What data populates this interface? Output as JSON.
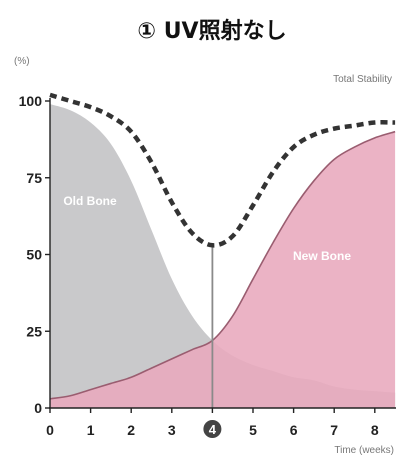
{
  "title": "① UV照射なし",
  "chart_data": {
    "type": "area",
    "unit_label": "(%)",
    "xlabel": "Time (weeks)",
    "x_ticks": [
      0,
      1,
      2,
      3,
      4,
      5,
      6,
      7,
      8
    ],
    "y_ticks": [
      0,
      25,
      50,
      75,
      100
    ],
    "xlim": [
      0,
      8.5
    ],
    "ylim": [
      0,
      100
    ],
    "highlight_x": 4,
    "series": [
      {
        "name": "Old Bone",
        "color": "#c9c9cb",
        "x": [
          0,
          0.5,
          1,
          1.5,
          2,
          2.5,
          3,
          3.5,
          4,
          4.5,
          5,
          5.5,
          6,
          6.5,
          7,
          7.5,
          8,
          8.5
        ],
        "y": [
          99,
          97,
          93,
          86,
          74,
          58,
          42,
          30,
          22,
          17,
          14,
          12,
          10,
          9,
          7,
          6,
          5.5,
          5
        ]
      },
      {
        "name": "New Bone",
        "color": "#e8a9bd",
        "x": [
          0,
          0.5,
          1,
          1.5,
          2,
          2.5,
          3,
          3.5,
          4,
          4.5,
          5,
          5.5,
          6,
          6.5,
          7,
          7.5,
          8,
          8.5
        ],
        "y": [
          3,
          4,
          6,
          8,
          10,
          13,
          16,
          19,
          22,
          30,
          42,
          54,
          65,
          74,
          81,
          85,
          88,
          90
        ]
      },
      {
        "name": "Total Stability",
        "color": "#333333",
        "style": "dashed",
        "x": [
          0,
          0.5,
          1,
          1.5,
          2,
          2.5,
          3,
          3.5,
          4,
          4.5,
          5,
          5.5,
          6,
          6.5,
          7,
          7.5,
          8,
          8.5
        ],
        "y": [
          102,
          100,
          98,
          95,
          90,
          80,
          67,
          57,
          53,
          56,
          66,
          77,
          85,
          89,
          91,
          92,
          93,
          93
        ]
      }
    ]
  }
}
